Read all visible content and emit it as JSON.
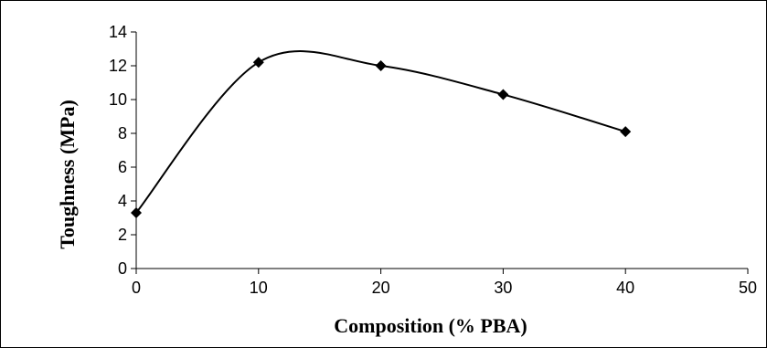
{
  "chart_data": {
    "type": "line",
    "title": "",
    "xlabel": "Composition (% PBA)",
    "ylabel": "Toughness (MPa)",
    "xlim": [
      0,
      50
    ],
    "ylim": [
      0,
      14
    ],
    "xticks": [
      0,
      10,
      20,
      30,
      40,
      50
    ],
    "yticks": [
      0,
      2,
      4,
      6,
      8,
      10,
      12,
      14
    ],
    "grid": false,
    "legend": "none",
    "smooth": true,
    "series": [
      {
        "x": [
          0,
          10,
          20,
          30,
          40
        ],
        "y": [
          3.3,
          12.2,
          12.0,
          10.3,
          8.1
        ],
        "marker": "diamond",
        "color": "#000000"
      }
    ]
  }
}
